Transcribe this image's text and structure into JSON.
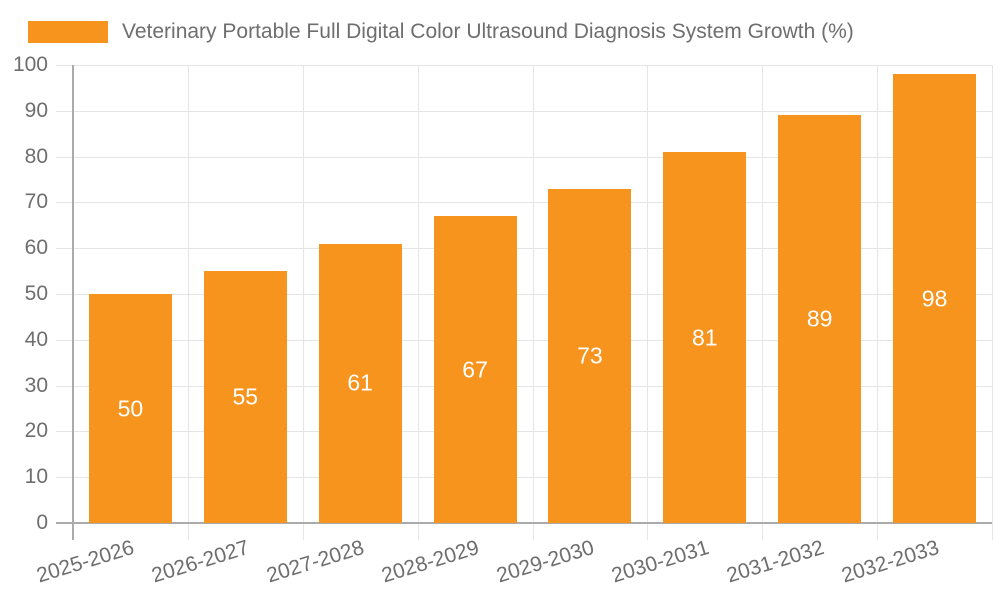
{
  "chart_data": {
    "type": "bar",
    "title": "Veterinary Portable Full Digital Color Ultrasound Diagnosis System Growth (%)",
    "categories": [
      "2025-2026",
      "2026-2027",
      "2027-2028",
      "2028-2029",
      "2029-2030",
      "2030-2031",
      "2031-2032",
      "2032-2033"
    ],
    "values": [
      50,
      55,
      61,
      67,
      73,
      81,
      89,
      98
    ],
    "xlabel": "",
    "ylabel": "",
    "ylim": [
      0,
      100
    ],
    "ytick_step": 10,
    "yticks": [
      0,
      10,
      20,
      30,
      40,
      50,
      60,
      70,
      80,
      90,
      100
    ],
    "grid": true,
    "value_labels": "inside-center",
    "legend_position": "top-left",
    "xlabel_rotation_deg": -17,
    "colors": {
      "bar": "#F7941E",
      "value_label": "#FFFFFF",
      "axis_text": "#6E6E6E",
      "grid_line": "#E5E5E5",
      "axis_line": "#ABABAB",
      "background": "#FFFFFF"
    }
  }
}
